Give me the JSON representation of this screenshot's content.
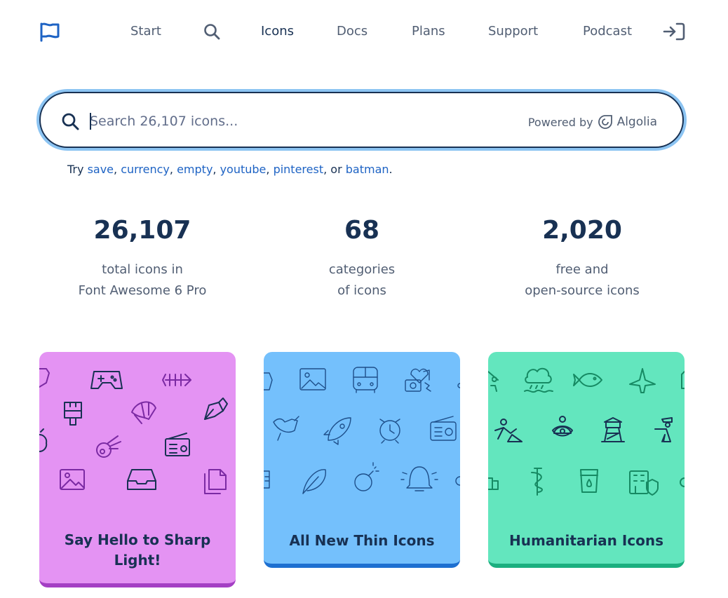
{
  "nav": {
    "items": [
      {
        "label": "Start"
      },
      {
        "label": "Icons"
      },
      {
        "label": "Docs"
      },
      {
        "label": "Plans"
      },
      {
        "label": "Support"
      },
      {
        "label": "Podcast"
      }
    ],
    "icons": {
      "logo": "flag-icon",
      "search": "search-icon",
      "login": "sign-in-icon"
    }
  },
  "search": {
    "placeholder": "Search 26,107 icons...",
    "value": "",
    "powered_by": "Powered by",
    "provider": "Algolia"
  },
  "suggestions": {
    "prefix": "Try",
    "items": [
      "save",
      "currency",
      "empty",
      "youtube",
      "pinterest"
    ],
    "or_text": ", or",
    "last": "batman",
    "end": "."
  },
  "stats": [
    {
      "value": "26,107",
      "line1": "total icons in",
      "line2": "Font Awesome 6 Pro"
    },
    {
      "value": "68",
      "line1": "categories",
      "line2": "of icons"
    },
    {
      "value": "2,020",
      "line1": "free and",
      "line2": "open-source icons"
    }
  ],
  "cards": [
    {
      "title": "Say Hello to Sharp Light!",
      "color": "#e493f3",
      "accent": "#a43fc4"
    },
    {
      "title": "All New Thin Icons",
      "color": "#74c0fc",
      "accent": "#1d6fd0"
    },
    {
      "title": "Humanitarian Icons",
      "color": "#63e6be",
      "accent": "#1baf7f"
    }
  ],
  "colors": {
    "text": "#183153",
    "link": "#1e63c4",
    "focus_ring": "#8cc4f2"
  }
}
